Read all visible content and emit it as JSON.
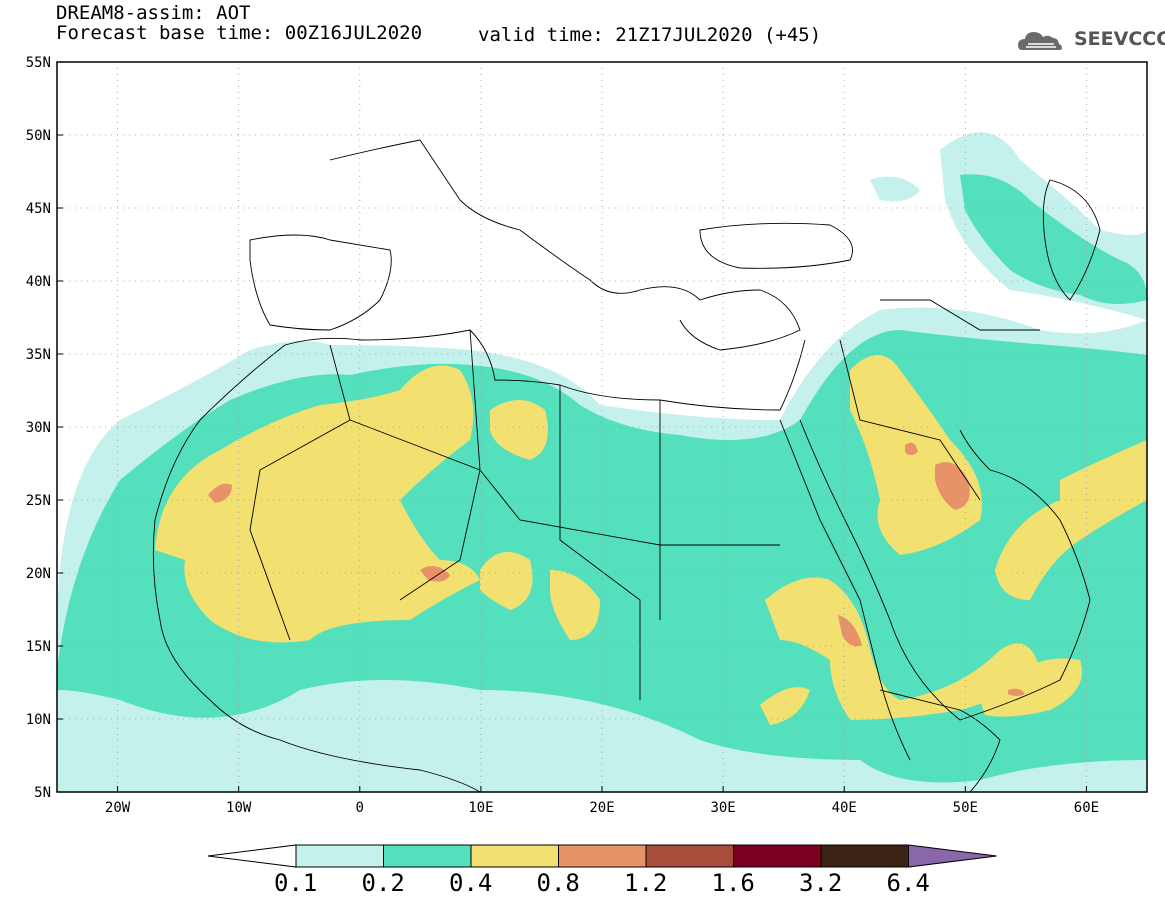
{
  "header": {
    "line1": "DREAM8-assim: AOT",
    "line2": "Forecast base time: 00Z16JUL2020",
    "valid": "valid time: 21Z17JUL2020 (+45)",
    "logo_text": "SEEVCCC",
    "logo_icon": "cloud-icon"
  },
  "axes": {
    "lat_labels": [
      "55N",
      "50N",
      "45N",
      "40N",
      "35N",
      "30N",
      "25N",
      "20N",
      "15N",
      "10N",
      "5N"
    ],
    "lon_labels": [
      "20W",
      "10W",
      "0",
      "10E",
      "20E",
      "30E",
      "40E",
      "50E",
      "60E"
    ],
    "lat_values": [
      55,
      50,
      45,
      40,
      35,
      30,
      25,
      20,
      15,
      10,
      5
    ],
    "lon_values": [
      -20,
      -10,
      0,
      10,
      20,
      30,
      40,
      50,
      60
    ],
    "lon_range": [
      -25,
      65
    ],
    "lat_range": [
      5,
      55
    ],
    "grid": "dotted"
  },
  "colorbar": {
    "labels": [
      "0.1",
      "0.2",
      "0.4",
      "0.8",
      "1.2",
      "1.6",
      "3.2",
      "6.4"
    ],
    "colors": [
      "#ffffff",
      "#c4f1ec",
      "#55e0bd",
      "#f2e070",
      "#e8926a",
      "#a84d3c",
      "#7a0020",
      "#3c2415",
      "#8a66aa"
    ]
  },
  "colors": {
    "c1": "#c4f1ec",
    "c2": "#55e0bd",
    "c3": "#f2e070",
    "c4": "#e8926a"
  }
}
